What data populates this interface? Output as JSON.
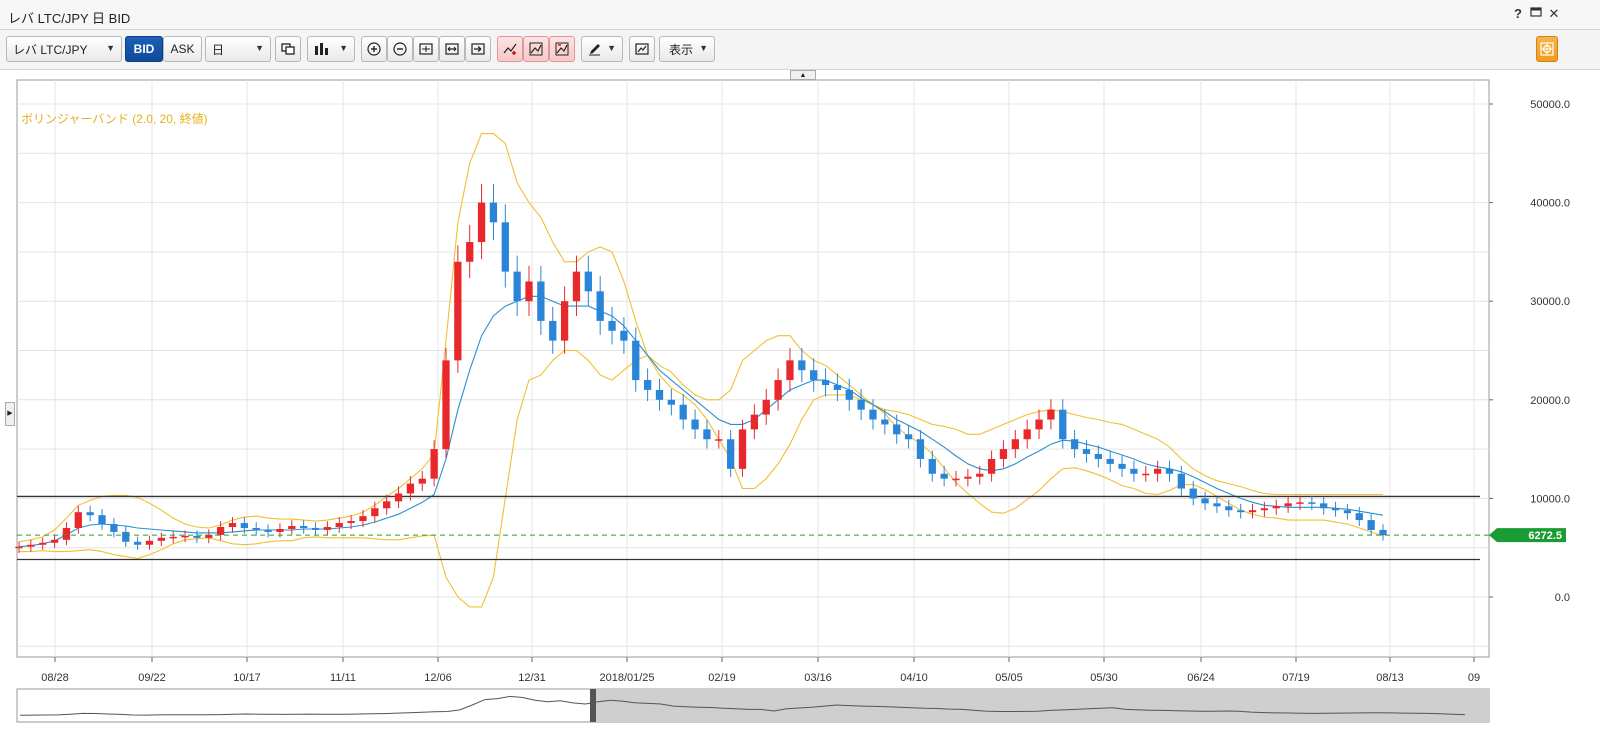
{
  "window": {
    "title": "レバ LTC/JPY 日 BID",
    "help_icon": "question-icon",
    "restore_icon": "window-restore-icon",
    "close_icon": "close-icon"
  },
  "toolbar": {
    "symbol_select": "レバ LTC/JPY",
    "bid_label": "BID",
    "ask_label": "ASK",
    "timeframe_select": "日",
    "display_label": "表示"
  },
  "chart_data": {
    "type": "candlestick",
    "symbol": "LTC/JPY",
    "indicator_label": "ボリンジャーバンド (2.0, 20, 終値)",
    "y_ticks": [
      "50000.0",
      "40000.0",
      "30000.0",
      "20000.0",
      "10000.0",
      "0.0"
    ],
    "ylim": [
      -5000,
      52000
    ],
    "x_ticks": [
      "08/28",
      "09/22",
      "10/17",
      "11/11",
      "12/06",
      "12/31",
      "2018/01/25",
      "02/19",
      "03/16",
      "04/10",
      "05/05",
      "05/30",
      "06/24",
      "07/19",
      "08/13",
      "09"
    ],
    "current_price": "6272.5",
    "current_price_value": 6272.5,
    "horizontal_lines": [
      10200,
      3800
    ],
    "grid": true,
    "colors": {
      "up": "#e8282b",
      "down": "#2a85d8",
      "band": "#f0c030",
      "mid": "#2a8fd0",
      "price_tag": "#1a9c34",
      "price_line": "#2a9c3a",
      "level_line": "#333333"
    },
    "close_series": [
      5100,
      5300,
      5500,
      5800,
      7000,
      8600,
      8300,
      7400,
      6600,
      5600,
      5300,
      5700,
      6000,
      6100,
      6200,
      6000,
      6300,
      7100,
      7500,
      7000,
      6800,
      6600,
      6900,
      7200,
      7000,
      6800,
      7100,
      7500,
      7700,
      8200,
      9000,
      9700,
      10500,
      11500,
      12000,
      15000,
      24000,
      34000,
      36000,
      40000,
      38000,
      33000,
      30000,
      32000,
      28000,
      26000,
      30000,
      33000,
      31000,
      28000,
      27000,
      26000,
      22000,
      21000,
      20000,
      19500,
      18000,
      17000,
      16000,
      16000,
      13000,
      17000,
      18500,
      20000,
      22000,
      24000,
      23000,
      22000,
      21500,
      21000,
      20000,
      19000,
      18000,
      17500,
      16500,
      16000,
      14000,
      12500,
      12000,
      12000,
      12200,
      12500,
      14000,
      15000,
      16000,
      17000,
      18000,
      19000,
      16000,
      15000,
      14500,
      14000,
      13500,
      13000,
      12500,
      12500,
      13000,
      12500,
      11000,
      10000,
      9500,
      9200,
      8800,
      8600,
      8800,
      9000,
      9200,
      9500,
      9600,
      9500,
      9000,
      8800,
      8500,
      7800,
      6800,
      6272.5
    ],
    "upper_band_series": [
      5600,
      5800,
      6100,
      6800,
      8000,
      9300,
      9800,
      10200,
      10300,
      10300,
      10100,
      9500,
      8800,
      8000,
      7400,
      7100,
      7000,
      7300,
      7800,
      8100,
      8200,
      8000,
      7900,
      7900,
      7800,
      7700,
      7800,
      8000,
      8200,
      8600,
      9300,
      10200,
      11000,
      12000,
      13000,
      14500,
      26000,
      38000,
      44000,
      47000,
      47000,
      46000,
      42000,
      40000,
      38500,
      36000,
      34000,
      34000,
      35000,
      35500,
      35000,
      32000,
      28000,
      24500,
      23500,
      22800,
      21500,
      20500,
      20000,
      20000,
      21000,
      24000,
      25000,
      26000,
      26500,
      26500,
      25000,
      24000,
      23500,
      22500,
      21500,
      20500,
      19500,
      19000,
      18800,
      18500,
      18000,
      17500,
      17300,
      17000,
      16500,
      16500,
      17000,
      17500,
      18000,
      18500,
      18800,
      19000,
      18800,
      18500,
      18200,
      18000,
      17700,
      17500,
      17000,
      16500,
      16000,
      15200,
      14000,
      13000,
      12300,
      11800,
      11500,
      11200,
      10800,
      10500,
      10400,
      10400,
      10400,
      10400,
      10400,
      10400,
      10400,
      10400,
      10400,
      10400
    ],
    "mid_band_series": [
      5100,
      5200,
      5400,
      5700,
      6300,
      7000,
      7300,
      7400,
      7300,
      7200,
      7000,
      6900,
      6800,
      6700,
      6600,
      6500,
      6500,
      6500,
      6600,
      6700,
      6800,
      6800,
      6800,
      6800,
      6900,
      6900,
      6900,
      7000,
      7100,
      7300,
      7600,
      8000,
      8400,
      9000,
      9600,
      10400,
      14000,
      19000,
      23000,
      26500,
      28500,
      29500,
      30000,
      30500,
      30500,
      30000,
      29500,
      29500,
      29500,
      29000,
      28500,
      27500,
      26000,
      24500,
      23000,
      22000,
      21000,
      20000,
      19000,
      18000,
      17500,
      17500,
      18000,
      19000,
      20000,
      21000,
      21500,
      22000,
      22000,
      21500,
      21000,
      20200,
      19500,
      18800,
      18000,
      17400,
      16800,
      16000,
      15200,
      14300,
      13500,
      13000,
      12800,
      13000,
      13500,
      14200,
      14800,
      15500,
      15900,
      15800,
      15500,
      15200,
      14800,
      14400,
      14000,
      13500,
      13200,
      13000,
      12700,
      12200,
      11600,
      11000,
      10500,
      10000,
      9600,
      9300,
      9200,
      9100,
      9100,
      9100,
      9100,
      9000,
      8900,
      8700,
      8500,
      8300
    ],
    "lower_band_series": [
      4600,
      4600,
      4700,
      4600,
      4600,
      4700,
      4800,
      4600,
      4300,
      4100,
      3900,
      4300,
      4800,
      5400,
      5800,
      5900,
      6000,
      5700,
      5400,
      5300,
      5400,
      5600,
      5700,
      5700,
      6000,
      6100,
      6000,
      6000,
      6000,
      6000,
      5900,
      5800,
      5800,
      6000,
      6200,
      6300,
      2000,
      0,
      -1000,
      -1000,
      2000,
      10000,
      18000,
      22000,
      22500,
      24000,
      25000,
      25000,
      24000,
      22500,
      22000,
      23000,
      24000,
      24500,
      22500,
      21200,
      20500,
      19500,
      18000,
      16000,
      14000,
      11000,
      11000,
      12000,
      13500,
      15500,
      18000,
      20000,
      20500,
      20500,
      20500,
      20000,
      19500,
      18600,
      17200,
      16300,
      15600,
      14500,
      13100,
      11600,
      10500,
      9500,
      8600,
      8500,
      9000,
      9900,
      10800,
      12000,
      13000,
      13100,
      12800,
      12400,
      11900,
      11300,
      11000,
      10500,
      10400,
      10800,
      11400,
      11400,
      10900,
      10200,
      9500,
      8800,
      8400,
      8100,
      8000,
      7800,
      7800,
      7800,
      7800,
      7600,
      7400,
      7000,
      6600,
      6200
    ]
  }
}
